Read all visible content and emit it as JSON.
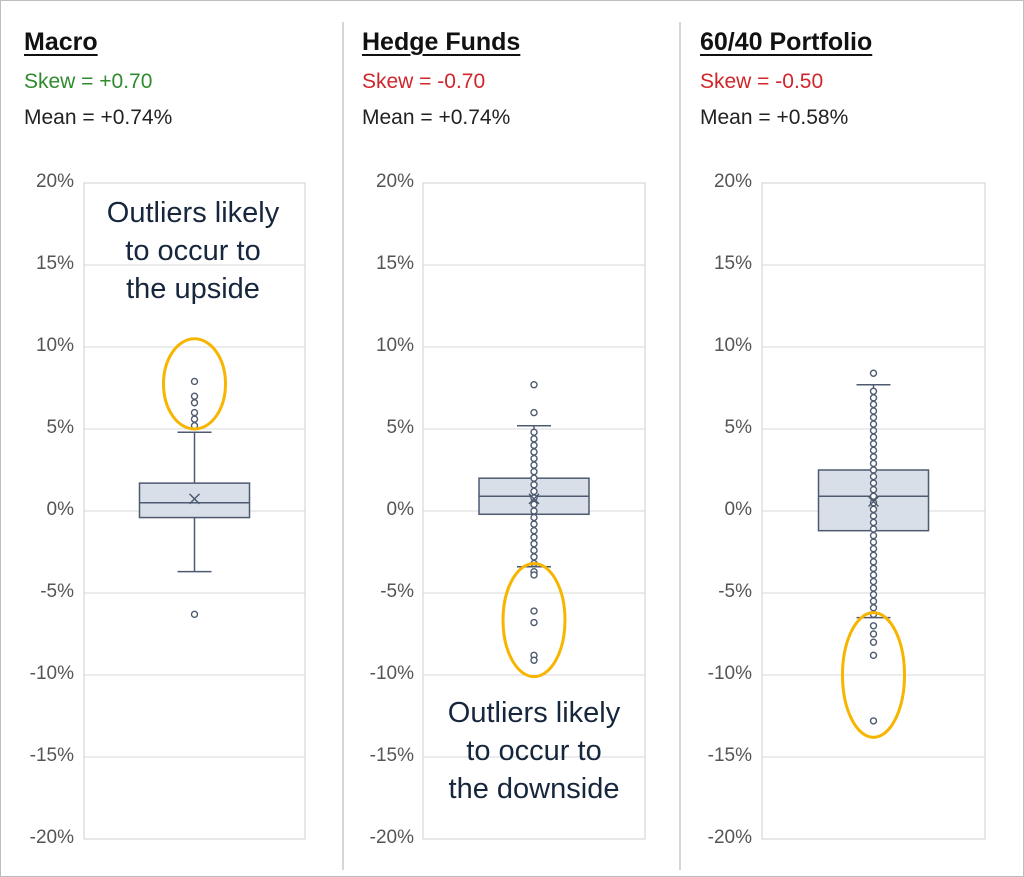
{
  "chart_data": [
    {
      "type": "box",
      "title": "Macro",
      "skew_label": "Skew = +0.70",
      "mean_label": "Mean = +0.74%",
      "ylim": [
        -20,
        20
      ],
      "y_ticks": [
        "20%",
        "15%",
        "10%",
        "5%",
        "0%",
        "-5%",
        "-10%",
        "-15%",
        "-20%"
      ],
      "grid": true,
      "box": {
        "whisker_low": -3.7,
        "q1": -0.4,
        "median": 0.5,
        "q3": 1.7,
        "whisker_high": 4.8,
        "mean": 0.74
      },
      "outliers": [
        7.9,
        7.0,
        6.6,
        6.0,
        5.6,
        5.2,
        -6.3
      ],
      "highlight": [
        5.0,
        10.5
      ],
      "annotation": [
        "Outliers likely",
        "to occur to",
        "the upside"
      ]
    },
    {
      "type": "box",
      "title": "Hedge Funds",
      "skew_label": "Skew = -0.70",
      "mean_label": "Mean = +0.74%",
      "ylim": [
        -20,
        20
      ],
      "y_ticks": [
        "20%",
        "15%",
        "10%",
        "5%",
        "0%",
        "-5%",
        "-10%",
        "-15%",
        "-20%"
      ],
      "grid": true,
      "box": {
        "whisker_low": -3.4,
        "q1": -0.2,
        "median": 0.9,
        "q3": 2.0,
        "whisker_high": 5.2,
        "mean": 0.74
      },
      "outliers": [
        7.7,
        6.0,
        -3.7,
        -3.9,
        -6.1,
        -6.8,
        -8.8,
        -9.1
      ],
      "highlight": [
        -10.1,
        -3.2
      ],
      "annotation": [
        "Outliers likely",
        "to occur to",
        "the downside"
      ]
    },
    {
      "type": "box",
      "title": "60/40 Portfolio",
      "skew_label": "Skew = -0.50",
      "mean_label": "Mean = +0.58%",
      "ylim": [
        -20,
        20
      ],
      "y_ticks": [
        "20%",
        "15%",
        "10%",
        "5%",
        "0%",
        "-5%",
        "-10%",
        "-15%",
        "-20%"
      ],
      "grid": true,
      "box": {
        "whisker_low": -6.5,
        "q1": -1.2,
        "median": 0.9,
        "q3": 2.5,
        "whisker_high": 7.7,
        "mean": 0.58
      },
      "outliers": [
        8.4,
        -7.0,
        -7.5,
        -8.0,
        -8.8,
        -12.8
      ],
      "highlight": [
        -13.8,
        -6.2
      ],
      "annotation": []
    }
  ],
  "colors": {
    "positive_skew": "#2e8b2e",
    "negative_skew": "#d0262b",
    "box_fill": "#d9dfe8",
    "box_stroke": "#4d5a70",
    "highlight": "#f7b500",
    "grid": "#d9d9d9"
  }
}
